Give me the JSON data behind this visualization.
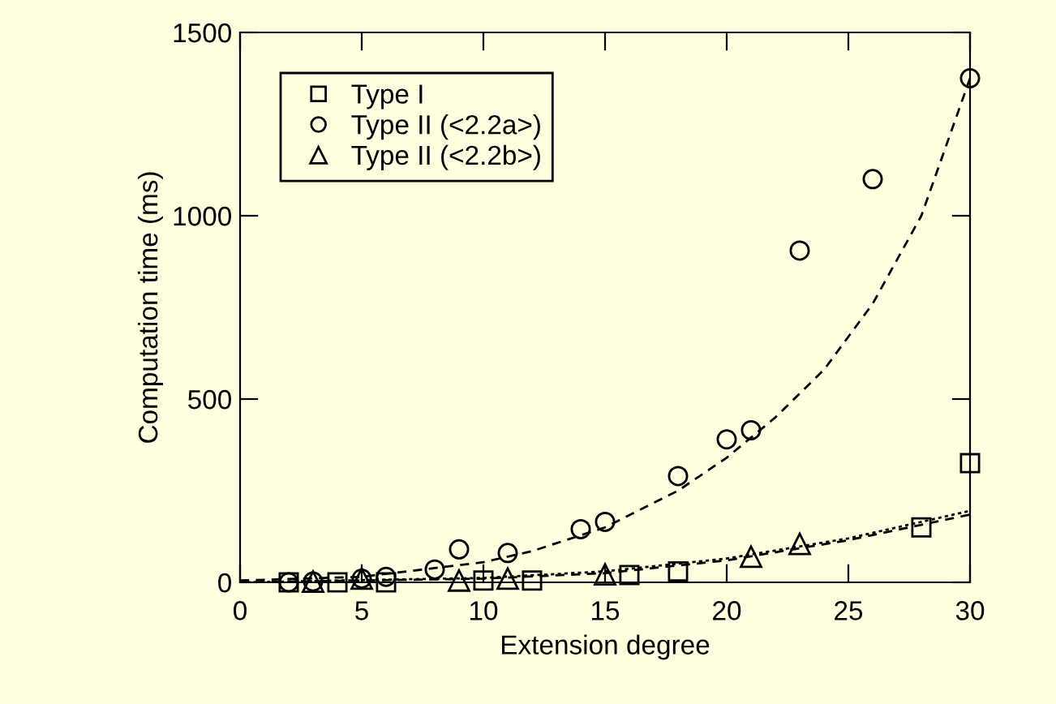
{
  "chart_data": {
    "type": "scatter",
    "xlabel": "Extension degree",
    "ylabel": "Computation time (ms)",
    "xlim": [
      0,
      30
    ],
    "ylim": [
      0,
      1500
    ],
    "xticks": [
      0,
      5,
      10,
      15,
      20,
      25,
      30
    ],
    "yticks": [
      0,
      500,
      1000,
      1500
    ],
    "grid": false,
    "legend": "top left",
    "series": [
      {
        "name": "Type I",
        "color": "#000000",
        "marker": "square",
        "x": [
          2,
          4,
          6,
          10,
          12,
          16,
          18,
          28,
          30
        ],
        "values": [
          0,
          0,
          0,
          5,
          5,
          20,
          30,
          150,
          325
        ]
      },
      {
        "name": "Type II (<2.2a>)",
        "color": "#000000",
        "marker": "circle",
        "x": [
          2,
          3,
          5,
          6,
          8,
          9,
          11,
          14,
          15,
          18,
          20,
          21,
          23,
          26,
          30
        ],
        "values": [
          0,
          2,
          10,
          15,
          35,
          90,
          80,
          145,
          165,
          290,
          390,
          415,
          905,
          1100,
          1375
        ]
      },
      {
        "name": "Type II (<2.2b>)",
        "color": "#000000",
        "marker": "triangle",
        "x": [
          3,
          5,
          9,
          11,
          15,
          21,
          23
        ],
        "values": [
          2,
          10,
          5,
          10,
          22,
          70,
          105
        ]
      },
      {
        "type": "line",
        "color": "#000000",
        "marker": "none",
        "line_style": "dashed",
        "x": [
          0,
          5,
          10,
          12,
          15,
          18,
          20,
          22,
          24,
          26,
          28,
          30
        ],
        "values": [
          5,
          15,
          55,
          85,
          150,
          250,
          340,
          450,
          580,
          760,
          1000,
          1375
        ]
      },
      {
        "type": "line",
        "color": "#000000",
        "marker": "none",
        "line_style": "dashed",
        "x": [
          0,
          10,
          15,
          20,
          25,
          30
        ],
        "values": [
          0,
          10,
          25,
          60,
          115,
          185
        ]
      },
      {
        "type": "line",
        "color": "#000000",
        "marker": "none",
        "line_style": "dotted",
        "x": [
          0,
          10,
          15,
          20,
          25,
          30
        ],
        "values": [
          0,
          12,
          30,
          65,
          120,
          195
        ]
      }
    ]
  }
}
